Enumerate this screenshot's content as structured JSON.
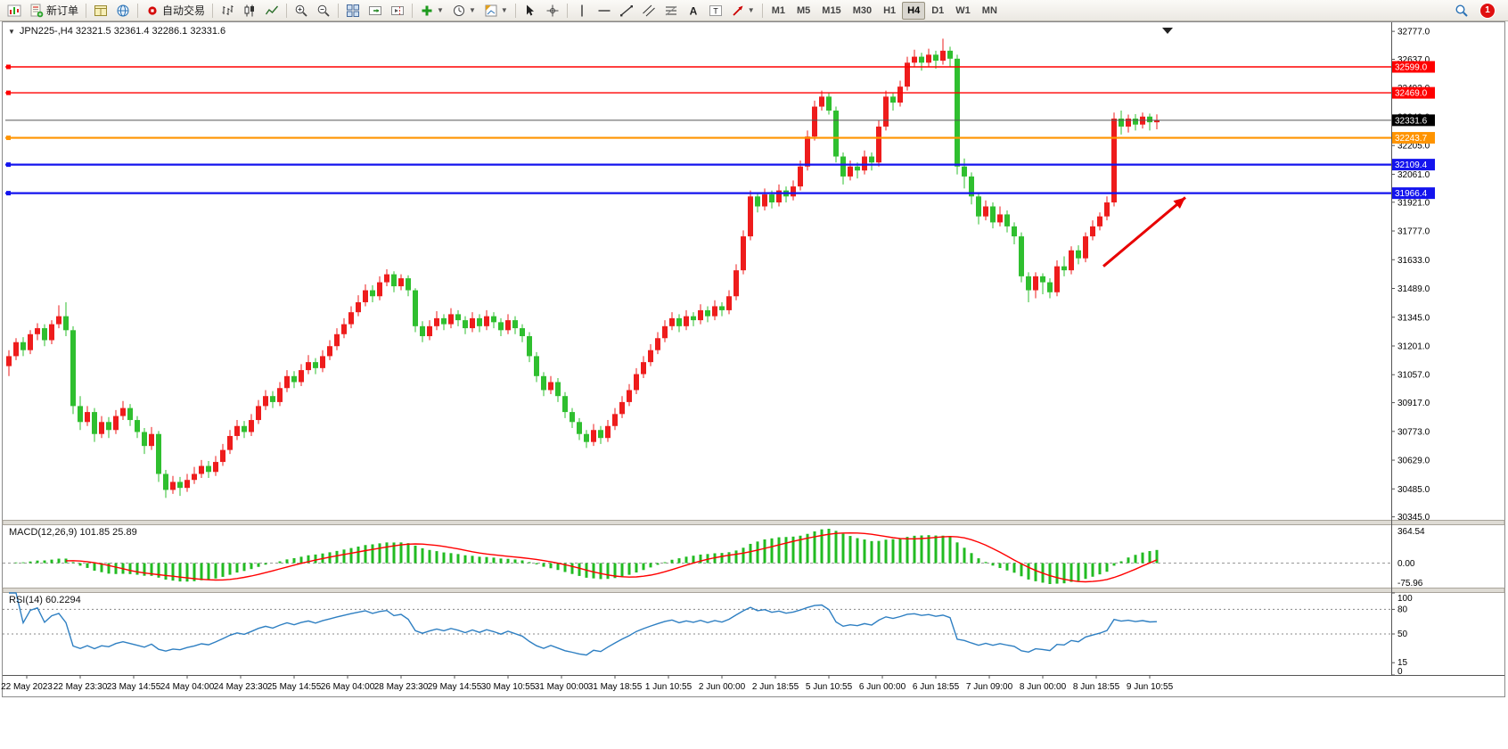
{
  "toolbar": {
    "new_order_label": "新订单",
    "autotrade_label": "自动交易",
    "timeframes": [
      "M1",
      "M5",
      "M15",
      "M30",
      "H1",
      "H4",
      "D1",
      "W1",
      "MN"
    ],
    "active_timeframe": "H4",
    "notification_count": "1",
    "icon_names": [
      "new-chart",
      "new-order",
      "charts",
      "community",
      "auto-trading",
      "bar-chart",
      "candlestick-chart",
      "line-chart",
      "zoom-in",
      "zoom-out",
      "tile-windows",
      "auto-scroll",
      "chart-shift",
      "indicators",
      "periods",
      "templates",
      "cursor",
      "crosshair",
      "vertical-line",
      "horizontal-line",
      "trendline",
      "equidistant-channel",
      "fibonacci",
      "text",
      "text-label",
      "arrows",
      "search",
      "notification"
    ]
  },
  "chart": {
    "symbol_header": "JPN225-,H4 32321.5 32361.4 32286.1 32331.6"
  },
  "chart_data": {
    "type": "candlestick",
    "symbol": "JPN225-",
    "period": "H4",
    "title": "JPN225-,H4 32321.5 32361.4 32286.1 32331.6",
    "last_ohlc": {
      "open": 32321.5,
      "high": 32361.4,
      "low": 32286.1,
      "close": 32331.6
    },
    "ylim": [
      30330,
      32800
    ],
    "up_color": "#ee1c1c",
    "down_color": "#2fbf2f",
    "y_axis_labels": [
      "32777.0",
      "32637.0",
      "32493.0",
      "32349.0",
      "32205.0",
      "32061.0",
      "31921.0",
      "31777.0",
      "31633.0",
      "31489.0",
      "31345.0",
      "31201.0",
      "31057.0",
      "30917.0",
      "30773.0",
      "30629.0",
      "30485.0",
      "30345.0"
    ],
    "x_axis_labels": [
      "22 May 2023",
      "22 May 23:30",
      "23 May 14:55",
      "24 May 04:00",
      "24 May 23:30",
      "25 May 14:55",
      "26 May 04:00",
      "28 May 23:30",
      "29 May 14:55",
      "30 May 10:55",
      "31 May 00:00",
      "31 May 18:55",
      "1 Jun 10:55",
      "2 Jun 00:00",
      "2 Jun 18:55",
      "5 Jun 10:55",
      "6 Jun 00:00",
      "6 Jun 18:55",
      "7 Jun 09:00",
      "8 Jun 00:00",
      "8 Jun 18:55",
      "9 Jun 10:55"
    ],
    "levels": [
      {
        "price": 32599.0,
        "label": "32599.0",
        "color": "#ff0000",
        "width": 1.4
      },
      {
        "price": 32469.0,
        "label": "32469.0",
        "color": "#ff0000",
        "width": 1.4
      },
      {
        "price": 32243.7,
        "label": "32243.7",
        "color": "#ff9400",
        "width": 2.2
      },
      {
        "price": 32109.4,
        "label": "32109.4",
        "color": "#1414ee",
        "width": 2.2
      },
      {
        "price": 31966.4,
        "label": "31966.4",
        "color": "#1414ee",
        "width": 2.2
      }
    ],
    "current_price": {
      "price": 32331.6,
      "label": "32331.6",
      "line_color": "#555555",
      "badge_color": "#000000"
    },
    "indicators": {
      "macd": {
        "label": "MACD(12,26,9) 101.85 25.89",
        "params": [
          12,
          26,
          9
        ],
        "values_text": [
          "101.85",
          "25.89"
        ],
        "axis_labels": [
          "364.54",
          "0.00",
          "-75.96"
        ],
        "histogram_color": "#22bb22",
        "signal_color": "#ff0000"
      },
      "rsi": {
        "label": "RSI(14) 60.2294",
        "period": 14,
        "value_text": "60.2294",
        "axis_labels": [
          100,
          80,
          50,
          15,
          0
        ],
        "level_lines": [
          80,
          50
        ],
        "line_color": "#2e7fc2"
      }
    },
    "annotation_arrow": {
      "from_bar": 153.5,
      "from_price": 31600,
      "to_bar": 165,
      "to_price": 31945,
      "color": "#e80000"
    },
    "candles": [
      [
        31100,
        31180,
        31050,
        31150
      ],
      [
        31150,
        31240,
        31130,
        31220
      ],
      [
        31220,
        31245,
        31150,
        31180
      ],
      [
        31180,
        31280,
        31160,
        31260
      ],
      [
        31260,
        31315,
        31230,
        31290
      ],
      [
        31290,
        31310,
        31200,
        31230
      ],
      [
        31230,
        31330,
        31210,
        31310
      ],
      [
        31310,
        31405,
        31290,
        31350
      ],
      [
        31350,
        31420,
        31250,
        31280
      ],
      [
        31280,
        31300,
        30860,
        30900
      ],
      [
        30900,
        30950,
        30780,
        30820
      ],
      [
        30820,
        30900,
        30800,
        30870
      ],
      [
        30870,
        30890,
        30720,
        30760
      ],
      [
        30760,
        30850,
        30740,
        30820
      ],
      [
        30820,
        30845,
        30740,
        30780
      ],
      [
        30780,
        30880,
        30760,
        30850
      ],
      [
        30850,
        30925,
        30830,
        30890
      ],
      [
        30890,
        30910,
        30800,
        30830
      ],
      [
        30830,
        30850,
        30740,
        30770
      ],
      [
        30770,
        30790,
        30660,
        30700
      ],
      [
        30700,
        30795,
        30680,
        30760
      ],
      [
        30760,
        30775,
        30520,
        30560
      ],
      [
        30560,
        30580,
        30440,
        30480
      ],
      [
        30480,
        30550,
        30460,
        30520
      ],
      [
        30520,
        30545,
        30450,
        30490
      ],
      [
        30490,
        30560,
        30470,
        30530
      ],
      [
        30530,
        30595,
        30510,
        30560
      ],
      [
        30560,
        30630,
        30540,
        30600
      ],
      [
        30600,
        30625,
        30540,
        30570
      ],
      [
        30570,
        30650,
        30550,
        30620
      ],
      [
        30620,
        30710,
        30600,
        30680
      ],
      [
        30680,
        30780,
        30660,
        30750
      ],
      [
        30750,
        30830,
        30730,
        30800
      ],
      [
        30800,
        30825,
        30740,
        30770
      ],
      [
        30770,
        30860,
        30750,
        30830
      ],
      [
        30830,
        30930,
        30810,
        30900
      ],
      [
        30900,
        30980,
        30880,
        30950
      ],
      [
        30950,
        30975,
        30890,
        30920
      ],
      [
        30920,
        31020,
        30900,
        30990
      ],
      [
        30990,
        31080,
        30970,
        31050
      ],
      [
        31050,
        31075,
        30990,
        31020
      ],
      [
        31020,
        31110,
        31000,
        31080
      ],
      [
        31080,
        31155,
        31060,
        31120
      ],
      [
        31120,
        31140,
        31060,
        31090
      ],
      [
        31090,
        31180,
        31070,
        31150
      ],
      [
        31150,
        31230,
        31130,
        31200
      ],
      [
        31200,
        31290,
        31180,
        31260
      ],
      [
        31260,
        31340,
        31240,
        31310
      ],
      [
        31310,
        31400,
        31290,
        31370
      ],
      [
        31370,
        31455,
        31350,
        31420
      ],
      [
        31420,
        31510,
        31400,
        31480
      ],
      [
        31480,
        31505,
        31420,
        31450
      ],
      [
        31450,
        31550,
        31430,
        31520
      ],
      [
        31520,
        31585,
        31500,
        31560
      ],
      [
        31560,
        31575,
        31470,
        31500
      ],
      [
        31500,
        31560,
        31480,
        31540
      ],
      [
        31540,
        31555,
        31450,
        31480
      ],
      [
        31480,
        31490,
        31270,
        31300
      ],
      [
        31300,
        31325,
        31220,
        31250
      ],
      [
        31250,
        31330,
        31230,
        31300
      ],
      [
        31300,
        31375,
        31280,
        31340
      ],
      [
        31340,
        31360,
        31280,
        31310
      ],
      [
        31310,
        31390,
        31290,
        31360
      ],
      [
        31360,
        31380,
        31300,
        31330
      ],
      [
        31330,
        31350,
        31260,
        31290
      ],
      [
        31290,
        31370,
        31270,
        31340
      ],
      [
        31340,
        31360,
        31270,
        31300
      ],
      [
        31300,
        31380,
        31280,
        31350
      ],
      [
        31350,
        31370,
        31290,
        31320
      ],
      [
        31320,
        31340,
        31250,
        31280
      ],
      [
        31280,
        31360,
        31260,
        31330
      ],
      [
        31330,
        31350,
        31260,
        31290
      ],
      [
        31290,
        31310,
        31220,
        31250
      ],
      [
        31250,
        31270,
        31120,
        31150
      ],
      [
        31150,
        31170,
        31020,
        31050
      ],
      [
        31050,
        31070,
        30950,
        30980
      ],
      [
        30980,
        31050,
        30960,
        31020
      ],
      [
        31020,
        31040,
        30920,
        30950
      ],
      [
        30950,
        30970,
        30840,
        30870
      ],
      [
        30870,
        30890,
        30790,
        30820
      ],
      [
        30820,
        30840,
        30730,
        30760
      ],
      [
        30760,
        30780,
        30690,
        30720
      ],
      [
        30720,
        30810,
        30700,
        30780
      ],
      [
        30780,
        30800,
        30710,
        30740
      ],
      [
        30740,
        30830,
        30720,
        30800
      ],
      [
        30800,
        30890,
        30780,
        30860
      ],
      [
        30860,
        30950,
        30840,
        30920
      ],
      [
        30920,
        31010,
        30900,
        30980
      ],
      [
        30980,
        31090,
        30960,
        31060
      ],
      [
        31060,
        31150,
        31040,
        31120
      ],
      [
        31120,
        31210,
        31100,
        31180
      ],
      [
        31180,
        31270,
        31160,
        31240
      ],
      [
        31240,
        31330,
        31220,
        31300
      ],
      [
        31300,
        31370,
        31280,
        31340
      ],
      [
        31340,
        31360,
        31270,
        31300
      ],
      [
        31300,
        31380,
        31280,
        31350
      ],
      [
        31350,
        31370,
        31300,
        31330
      ],
      [
        31330,
        31410,
        31310,
        31380
      ],
      [
        31380,
        31400,
        31320,
        31350
      ],
      [
        31350,
        31430,
        31330,
        31400
      ],
      [
        31400,
        31420,
        31350,
        31380
      ],
      [
        31380,
        31480,
        31360,
        31450
      ],
      [
        31450,
        31610,
        31430,
        31580
      ],
      [
        31580,
        31780,
        31560,
        31750
      ],
      [
        31750,
        31980,
        31730,
        31950
      ],
      [
        31950,
        31970,
        31870,
        31900
      ],
      [
        31900,
        31990,
        31880,
        31960
      ],
      [
        31960,
        31980,
        31890,
        31920
      ],
      [
        31920,
        32010,
        31900,
        31980
      ],
      [
        31980,
        32000,
        31920,
        31950
      ],
      [
        31950,
        32030,
        31930,
        32000
      ],
      [
        32000,
        32130,
        31980,
        32100
      ],
      [
        32100,
        32280,
        32080,
        32250
      ],
      [
        32250,
        32430,
        32230,
        32400
      ],
      [
        32400,
        32480,
        32380,
        32450
      ],
      [
        32450,
        32470,
        32360,
        32380
      ],
      [
        32380,
        32400,
        32120,
        32150
      ],
      [
        32150,
        32170,
        32010,
        32050
      ],
      [
        32050,
        32130,
        32030,
        32100
      ],
      [
        32100,
        32120,
        32040,
        32080
      ],
      [
        32080,
        32180,
        32060,
        32150
      ],
      [
        32150,
        32170,
        32080,
        32120
      ],
      [
        32120,
        32330,
        32100,
        32300
      ],
      [
        32300,
        32480,
        32280,
        32450
      ],
      [
        32450,
        32470,
        32380,
        32420
      ],
      [
        32420,
        32530,
        32400,
        32500
      ],
      [
        32500,
        32650,
        32480,
        32620
      ],
      [
        32620,
        32685,
        32600,
        32650
      ],
      [
        32650,
        32670,
        32580,
        32620
      ],
      [
        32620,
        32690,
        32600,
        32660
      ],
      [
        32660,
        32680,
        32590,
        32630
      ],
      [
        32630,
        32740,
        32610,
        32680
      ],
      [
        32680,
        32700,
        32600,
        32640
      ],
      [
        32640,
        32660,
        32060,
        32100
      ],
      [
        32100,
        32140,
        31990,
        32050
      ],
      [
        32050,
        32070,
        31910,
        31950
      ],
      [
        31950,
        31970,
        31810,
        31850
      ],
      [
        31850,
        31930,
        31830,
        31900
      ],
      [
        31900,
        31920,
        31790,
        31820
      ],
      [
        31820,
        31900,
        31800,
        31860
      ],
      [
        31860,
        31880,
        31770,
        31800
      ],
      [
        31800,
        31820,
        31710,
        31750
      ],
      [
        31750,
        31770,
        31520,
        31550
      ],
      [
        31550,
        31570,
        31420,
        31480
      ],
      [
        31480,
        31570,
        31440,
        31550
      ],
      [
        31550,
        31565,
        31460,
        31520
      ],
      [
        31520,
        31540,
        31440,
        31470
      ],
      [
        31470,
        31630,
        31450,
        31600
      ],
      [
        31600,
        31650,
        31550,
        31580
      ],
      [
        31580,
        31700,
        31560,
        31680
      ],
      [
        31680,
        31705,
        31610,
        31640
      ],
      [
        31640,
        31770,
        31620,
        31750
      ],
      [
        31750,
        31830,
        31730,
        31800
      ],
      [
        31800,
        31870,
        31780,
        31850
      ],
      [
        31850,
        31950,
        31830,
        31920
      ],
      [
        31920,
        32370,
        31900,
        32340
      ],
      [
        32340,
        32380,
        32260,
        32300
      ],
      [
        32300,
        32360,
        32270,
        32340
      ],
      [
        32340,
        32362,
        32280,
        32310
      ],
      [
        32310,
        32370,
        32290,
        32350
      ],
      [
        32350,
        32365,
        32280,
        32321.5
      ],
      [
        32321.5,
        32361.4,
        32286.1,
        32331.6
      ]
    ]
  }
}
